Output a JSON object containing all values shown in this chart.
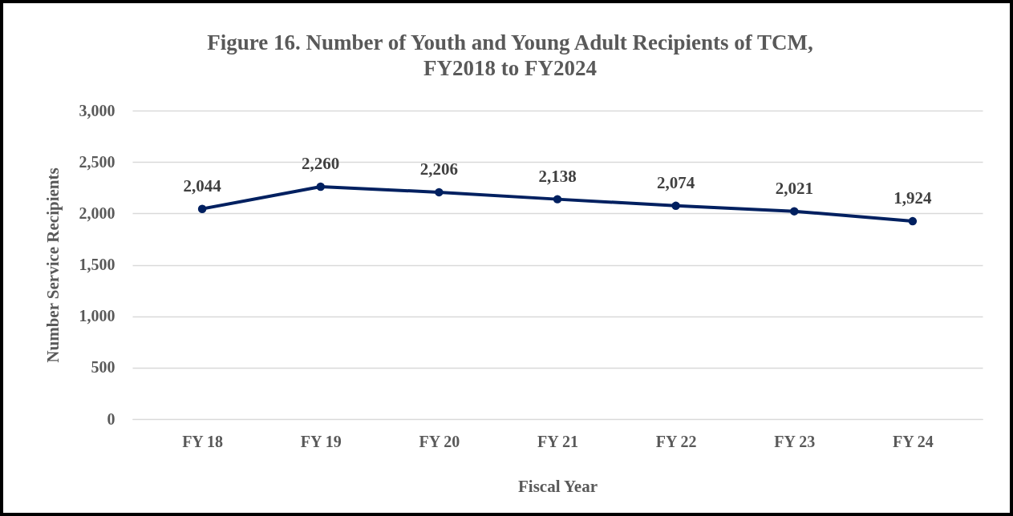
{
  "chart_data": {
    "type": "line",
    "title": [
      "Figure 16. Number of Youth and Young Adult Recipients of TCM,",
      "FY2018 to FY2024"
    ],
    "xlabel": "Fiscal Year",
    "ylabel": "Number  Service Recipients",
    "categories": [
      "FY 18",
      "FY 19",
      "FY 20",
      "FY 21",
      "FY 22",
      "FY 23",
      "FY 24"
    ],
    "series": [
      {
        "color": "#002060",
        "values": [
          2044,
          2260,
          2206,
          2138,
          2074,
          2021,
          1924
        ],
        "value_labels": [
          "2,044",
          "2,260",
          "2,206",
          "2,138",
          "2,074",
          "2,021",
          "1,924"
        ]
      }
    ],
    "ylim": [
      0,
      3000
    ],
    "yticks": [
      0,
      {
        "value": 500,
        "label": "500"
      },
      {
        "value": 1000,
        "label": "1,000"
      },
      {
        "value": 1500,
        "label": "1,500"
      },
      {
        "value": 2000,
        "label": "2,000"
      },
      {
        "value": 2500,
        "label": "2,500"
      },
      {
        "value": 3000,
        "label": "3,000"
      }
    ],
    "grid": "y",
    "marker": "circle",
    "line_style": "solid"
  }
}
